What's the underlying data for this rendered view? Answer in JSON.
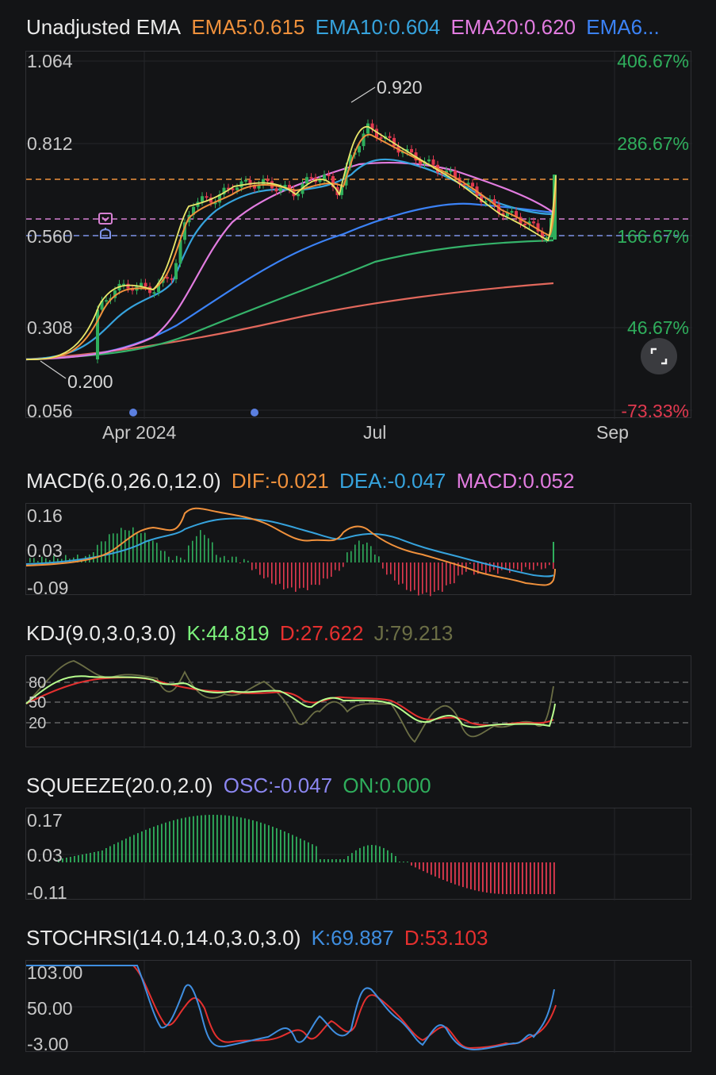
{
  "main_chart": {
    "title": "Unadjusted EMA",
    "ema_labels": [
      {
        "text": "EMA5:0.615",
        "color": "#f0913c"
      },
      {
        "text": "EMA10:0.604",
        "color": "#36a3dd"
      },
      {
        "text": "EMA20:0.620",
        "color": "#e27ce0"
      },
      {
        "text": "EMA6...",
        "color": "#3b82f6"
      }
    ],
    "y_ticks": [
      "1.064",
      "0.812",
      "0.560",
      "0.308",
      "0.056"
    ],
    "pct_ticks": [
      {
        "text": "406.67%",
        "color": "#2fae5c"
      },
      {
        "text": "286.67%",
        "color": "#2fae5c"
      },
      {
        "text": "166.67%",
        "color": "#2fae5c"
      },
      {
        "text": "46.67%",
        "color": "#2fae5c"
      },
      {
        "text": "-73.33%",
        "color": "#e0394f"
      }
    ],
    "x_ticks": [
      "Apr 2024",
      "Jul",
      "Sep"
    ],
    "high_label": "0.920",
    "low_label": "0.200",
    "ylim": [
      0.056,
      1.064
    ],
    "current_price_line": 0.706,
    "pink_line": 0.609,
    "blue_line": 0.561,
    "up_color": "#2fae5c",
    "down_color": "#e0394f"
  },
  "macd": {
    "title": "MACD(6.0,26.0,12.0)",
    "values": [
      {
        "text": "DIF:-0.021",
        "color": "#f0913c"
      },
      {
        "text": "DEA:-0.047",
        "color": "#36a3dd"
      },
      {
        "text": "MACD:0.052",
        "color": "#e27ce0"
      }
    ],
    "y_ticks": [
      "0.16",
      "0.03",
      "-0.09"
    ]
  },
  "kdj": {
    "title": "KDJ(9.0,3.0,3.0)",
    "values": [
      {
        "text": "K:44.819",
        "color": "#7cf27c"
      },
      {
        "text": "D:27.622",
        "color": "#e5302f"
      },
      {
        "text": "J:79.213",
        "color": "#6b6e45"
      }
    ],
    "y_ticks": [
      "80",
      "50",
      "20"
    ]
  },
  "squeeze": {
    "title": "SQUEEZE(20.0,2.0)",
    "values": [
      {
        "text": "OSC:-0.047",
        "color": "#8b86f0"
      },
      {
        "text": "ON:0.000",
        "color": "#2fae5c"
      }
    ],
    "y_ticks": [
      "0.17",
      "0.03",
      "-0.11"
    ]
  },
  "stochrsi": {
    "title": "STOCHRSI(14.0,14.0,3.0,3.0)",
    "values": [
      {
        "text": "K:69.887",
        "color": "#3f8ee0"
      },
      {
        "text": "D:53.103",
        "color": "#e5302f"
      }
    ],
    "y_ticks": [
      "103.00",
      "50.00",
      "-3.00"
    ]
  },
  "icons": {
    "expand": "expand-corners-icon",
    "alert": "alert-bell-icon"
  }
}
